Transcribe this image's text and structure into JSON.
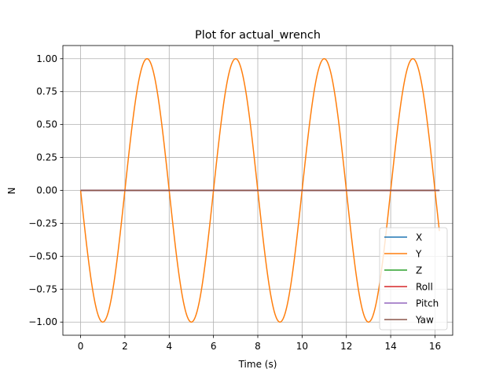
{
  "chart_data": {
    "type": "line",
    "title": "Plot for actual_wrench",
    "xlabel": "Time (s)",
    "ylabel": "N",
    "xlim": [
      -0.8,
      16.8
    ],
    "ylim": [
      -1.1,
      1.1
    ],
    "xticks": [
      0,
      2,
      4,
      6,
      8,
      10,
      12,
      14,
      16
    ],
    "xtick_labels": [
      "0",
      "2",
      "4",
      "6",
      "8",
      "10",
      "12",
      "14",
      "16"
    ],
    "yticks": [
      -1.0,
      -0.75,
      -0.5,
      -0.25,
      0.0,
      0.25,
      0.5,
      0.75,
      1.0
    ],
    "ytick_labels": [
      "−1.00",
      "−0.75",
      "−0.50",
      "−0.25",
      "0.00",
      "0.25",
      "0.50",
      "0.75",
      "1.00"
    ],
    "grid": true,
    "legend_position": "lower-right",
    "x_range_data": [
      0,
      16.2
    ],
    "series": [
      {
        "name": "X",
        "color": "#1f77b4",
        "function": "constant",
        "value": 0
      },
      {
        "name": "Y",
        "color": "#ff7f0e",
        "function": "negative_sine",
        "amplitude": 1.0,
        "period": 4.0
      },
      {
        "name": "Z",
        "color": "#2ca02c",
        "function": "constant",
        "value": 0
      },
      {
        "name": "Roll",
        "color": "#d62728",
        "function": "constant",
        "value": 0
      },
      {
        "name": "Pitch",
        "color": "#9467bd",
        "function": "constant",
        "value": 0
      },
      {
        "name": "Yaw",
        "color": "#8c564b",
        "function": "constant",
        "value": 0
      }
    ]
  }
}
